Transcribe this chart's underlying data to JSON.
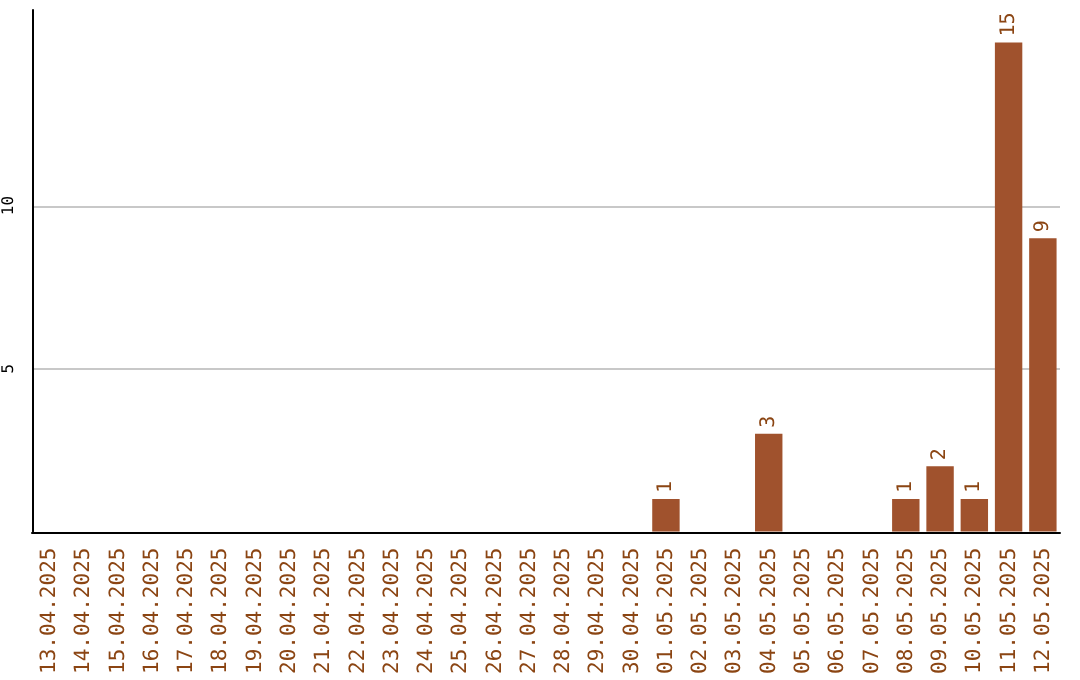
{
  "chart_data": {
    "type": "bar",
    "categories": [
      "13.04.2025",
      "14.04.2025",
      "15.04.2025",
      "16.04.2025",
      "17.04.2025",
      "18.04.2025",
      "19.04.2025",
      "20.04.2025",
      "21.04.2025",
      "22.04.2025",
      "23.04.2025",
      "24.04.2025",
      "25.04.2025",
      "26.04.2025",
      "27.04.2025",
      "28.04.2025",
      "29.04.2025",
      "30.04.2025",
      "01.05.2025",
      "02.05.2025",
      "03.05.2025",
      "04.05.2025",
      "05.05.2025",
      "06.05.2025",
      "07.05.2025",
      "08.05.2025",
      "09.05.2025",
      "10.05.2025",
      "11.05.2025",
      "12.05.2025"
    ],
    "values": [
      0,
      0,
      0,
      0,
      0,
      0,
      0,
      0,
      0,
      0,
      0,
      0,
      0,
      0,
      0,
      0,
      0,
      0,
      1,
      0,
      0,
      3,
      0,
      0,
      0,
      1,
      2,
      1,
      15,
      9
    ],
    "value_labels": [
      null,
      null,
      null,
      null,
      null,
      null,
      null,
      null,
      null,
      null,
      null,
      null,
      null,
      null,
      null,
      null,
      null,
      null,
      "1",
      null,
      null,
      "3",
      null,
      null,
      null,
      "1",
      "2",
      "1",
      "15",
      "9"
    ],
    "color": "#a0522d",
    "ylim": [
      0,
      16
    ],
    "yticks": [
      5,
      10
    ],
    "grid": "y"
  }
}
